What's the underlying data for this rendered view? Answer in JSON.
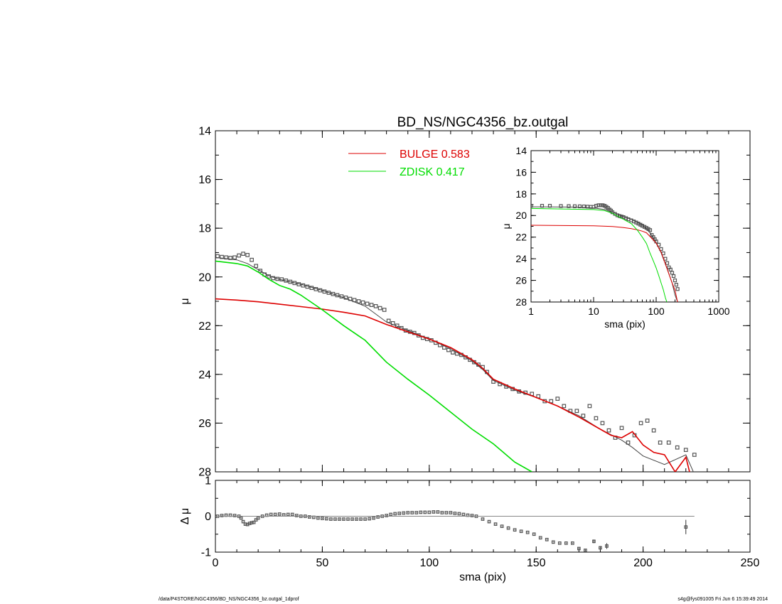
{
  "chart_data": [
    {
      "id": "main",
      "type": "scatter",
      "title": "BD_NS/NGC4356_bz.outgal",
      "xlabel": "",
      "ylabel": "μ",
      "xlim": [
        0,
        250
      ],
      "ylim": [
        28,
        14
      ],
      "xticks": [
        0,
        50,
        100,
        150,
        200,
        250
      ],
      "yticks": [
        14,
        16,
        18,
        20,
        22,
        24,
        26,
        28
      ],
      "legend": [
        {
          "label": "BULGE",
          "value": "0.583",
          "color": "#dd0000"
        },
        {
          "label": "ZDISK",
          "value": "0.417",
          "color": "#00dd00"
        }
      ],
      "series": [
        {
          "name": "data",
          "style": "points",
          "color": "#555555",
          "x": [
            1,
            3,
            5,
            7,
            9,
            11,
            13,
            15,
            17,
            19,
            21,
            23,
            25,
            27,
            29,
            31,
            33,
            35,
            37,
            39,
            41,
            43,
            45,
            47,
            49,
            51,
            53,
            55,
            57,
            59,
            61,
            63,
            65,
            67,
            69,
            71,
            73,
            75,
            77,
            79,
            81,
            83,
            85,
            87,
            89,
            91,
            93,
            95,
            97,
            99,
            101,
            103,
            105,
            107,
            109,
            111,
            113,
            115,
            117,
            119,
            121,
            123,
            125,
            127,
            130,
            133,
            136,
            139,
            142,
            145,
            148,
            151,
            154,
            157,
            160,
            163,
            166,
            169,
            172,
            175,
            178,
            181,
            184,
            187,
            190,
            193,
            196,
            199,
            202,
            205,
            208,
            212,
            216,
            220,
            224
          ],
          "y": [
            19.15,
            19.18,
            19.2,
            19.22,
            19.2,
            19.12,
            19.05,
            19.1,
            19.3,
            19.55,
            19.75,
            19.9,
            19.98,
            20.05,
            20.08,
            20.1,
            20.15,
            20.2,
            20.25,
            20.3,
            20.35,
            20.4,
            20.45,
            20.5,
            20.55,
            20.6,
            20.65,
            20.7,
            20.75,
            20.8,
            20.85,
            20.9,
            20.95,
            21.0,
            21.05,
            21.1,
            21.15,
            21.2,
            21.28,
            21.35,
            21.8,
            21.9,
            22.0,
            22.1,
            22.2,
            22.25,
            22.3,
            22.4,
            22.5,
            22.55,
            22.6,
            22.7,
            22.8,
            22.9,
            23.0,
            23.1,
            23.15,
            23.2,
            23.3,
            23.4,
            23.5,
            23.6,
            23.7,
            23.9,
            24.3,
            24.4,
            24.5,
            24.6,
            24.7,
            24.75,
            24.8,
            24.9,
            25.1,
            25.1,
            25.0,
            25.3,
            25.5,
            25.5,
            25.7,
            25.3,
            25.8,
            26.0,
            26.3,
            26.6,
            26.2,
            26.8,
            26.5,
            26.0,
            25.9,
            26.3,
            26.8,
            26.8,
            27.0,
            27.1,
            27.3
          ]
        },
        {
          "name": "model",
          "style": "line",
          "color": "#444444",
          "x": [
            0,
            5,
            10,
            15,
            20,
            25,
            30,
            35,
            40,
            50,
            60,
            70,
            80,
            90,
            100,
            110,
            120,
            125,
            130,
            140,
            150,
            160,
            170,
            180,
            190,
            195,
            200,
            210,
            220,
            224
          ],
          "y": [
            19.2,
            19.25,
            19.3,
            19.45,
            19.7,
            19.95,
            20.1,
            20.2,
            20.3,
            20.55,
            20.85,
            21.2,
            21.85,
            22.2,
            22.55,
            22.95,
            23.45,
            23.8,
            24.25,
            24.65,
            24.95,
            25.3,
            25.7,
            26.25,
            26.7,
            27.0,
            27.35,
            27.7,
            27.3,
            28.1
          ]
        },
        {
          "name": "BULGE",
          "style": "line",
          "color": "#dd0000",
          "x": [
            0,
            10,
            20,
            30,
            40,
            50,
            60,
            70,
            80,
            90,
            100,
            110,
            120,
            125,
            130,
            140,
            150,
            160,
            170,
            180,
            185,
            190,
            195,
            200,
            205,
            210,
            215,
            220,
            222
          ],
          "y": [
            20.9,
            20.95,
            21.02,
            21.12,
            21.22,
            21.32,
            21.45,
            21.6,
            21.95,
            22.25,
            22.55,
            22.9,
            23.4,
            23.75,
            24.2,
            24.6,
            24.95,
            25.3,
            25.75,
            26.25,
            26.5,
            26.6,
            26.35,
            26.9,
            27.2,
            27.3,
            28.0,
            27.4,
            28.1
          ]
        },
        {
          "name": "ZDISK",
          "style": "line",
          "color": "#00dd00",
          "x": [
            0,
            10,
            15,
            20,
            25,
            30,
            35,
            40,
            50,
            60,
            70,
            80,
            90,
            100,
            110,
            120,
            130,
            140,
            148
          ],
          "y": [
            19.35,
            19.45,
            19.55,
            19.8,
            20.1,
            20.35,
            20.5,
            20.75,
            21.35,
            22.0,
            22.6,
            23.5,
            24.2,
            24.85,
            25.55,
            26.25,
            26.85,
            27.6,
            28.0
          ]
        }
      ]
    },
    {
      "id": "residual",
      "type": "scatter",
      "xlabel": "sma (pix)",
      "ylabel": "Δ μ",
      "xlim": [
        0,
        250
      ],
      "ylim": [
        -1,
        1
      ],
      "xticks": [
        0,
        50,
        100,
        150,
        200,
        250
      ],
      "yticks": [
        -1,
        0,
        1
      ],
      "zero_line": {
        "x": [
          0,
          224
        ],
        "y": 0
      },
      "series": [
        {
          "name": "residuals",
          "style": "points",
          "color": "#555555",
          "x": [
            1,
            3,
            5,
            7,
            9,
            11,
            12,
            13,
            14,
            15,
            16,
            17,
            18,
            19,
            20,
            22,
            24,
            26,
            28,
            30,
            32,
            34,
            36,
            38,
            40,
            42,
            44,
            46,
            48,
            50,
            52,
            54,
            56,
            58,
            60,
            62,
            64,
            66,
            68,
            70,
            72,
            74,
            76,
            78,
            80,
            82,
            84,
            86,
            88,
            90,
            92,
            94,
            96,
            98,
            100,
            102,
            104,
            106,
            108,
            110,
            112,
            114,
            116,
            118,
            120,
            122,
            125,
            128,
            131,
            134,
            137,
            140,
            143,
            146,
            149,
            152,
            155,
            158,
            161,
            164,
            167,
            170,
            173,
            177,
            180,
            183,
            220
          ],
          "y": [
            0.0,
            0.02,
            0.03,
            0.03,
            0.02,
            0.0,
            -0.05,
            -0.15,
            -0.22,
            -0.23,
            -0.2,
            -0.18,
            -0.17,
            -0.1,
            -0.05,
            0.0,
            0.03,
            0.05,
            0.05,
            0.06,
            0.04,
            0.05,
            0.05,
            0.02,
            0.0,
            0.0,
            -0.02,
            -0.03,
            -0.05,
            -0.06,
            -0.07,
            -0.08,
            -0.08,
            -0.08,
            -0.08,
            -0.08,
            -0.08,
            -0.08,
            -0.08,
            -0.08,
            -0.07,
            -0.05,
            -0.02,
            0.0,
            0.02,
            0.05,
            0.07,
            0.08,
            0.09,
            0.1,
            0.1,
            0.1,
            0.11,
            0.11,
            0.11,
            0.12,
            0.12,
            0.1,
            0.1,
            0.1,
            0.08,
            0.07,
            0.05,
            0.03,
            0.02,
            0.0,
            -0.08,
            -0.15,
            -0.22,
            -0.28,
            -0.33,
            -0.38,
            -0.42,
            -0.45,
            -0.5,
            -0.6,
            -0.65,
            -0.72,
            -0.75,
            -0.75,
            -0.75,
            -0.9,
            -0.95,
            -0.7,
            -0.88,
            -0.83,
            -0.3
          ],
          "yerr": [
            0.01,
            0.01,
            0.01,
            0.01,
            0.01,
            0.01,
            0.01,
            0.01,
            0.01,
            0.01,
            0.01,
            0.01,
            0.01,
            0.01,
            0.01,
            0.01,
            0.01,
            0.01,
            0.01,
            0.01,
            0.01,
            0.01,
            0.01,
            0.01,
            0.01,
            0.01,
            0.01,
            0.01,
            0.01,
            0.01,
            0.01,
            0.01,
            0.01,
            0.01,
            0.01,
            0.01,
            0.01,
            0.01,
            0.01,
            0.01,
            0.01,
            0.01,
            0.01,
            0.01,
            0.01,
            0.01,
            0.01,
            0.01,
            0.01,
            0.01,
            0.01,
            0.01,
            0.01,
            0.01,
            0.01,
            0.01,
            0.01,
            0.01,
            0.01,
            0.01,
            0.01,
            0.01,
            0.01,
            0.01,
            0.01,
            0.01,
            0.01,
            0.01,
            0.01,
            0.01,
            0.01,
            0.01,
            0.01,
            0.01,
            0.01,
            0.01,
            0.01,
            0.01,
            0.01,
            0.01,
            0.01,
            0.02,
            0.02,
            0.05,
            0.05,
            0.08,
            0.2
          ]
        }
      ]
    },
    {
      "id": "inset",
      "type": "scatter",
      "xlabel": "sma (pix)",
      "ylabel": "μ",
      "xscale": "log",
      "xlim": [
        1,
        1000
      ],
      "ylim": [
        28,
        14
      ],
      "xticks": [
        1,
        10,
        100,
        1000
      ],
      "yticks": [
        14,
        16,
        18,
        20,
        22,
        24,
        26,
        28
      ],
      "series": [
        {
          "name": "data",
          "style": "points",
          "color": "#555555",
          "x": [
            1,
            1.5,
            2,
            3,
            4,
            5,
            6,
            7,
            8,
            9,
            10,
            11,
            12,
            13,
            14,
            15,
            16,
            17,
            18,
            19,
            20,
            22,
            24,
            26,
            28,
            30,
            33,
            36,
            40,
            44,
            48,
            52,
            56,
            60,
            65,
            70,
            75,
            80,
            85,
            90,
            95,
            100,
            110,
            120,
            130,
            140,
            150,
            160,
            170,
            180,
            190,
            200,
            210,
            220
          ],
          "y": [
            19.1,
            19.1,
            19.1,
            19.12,
            19.13,
            19.14,
            19.15,
            19.16,
            19.18,
            19.2,
            19.2,
            19.1,
            19.05,
            19.05,
            19.05,
            19.1,
            19.2,
            19.3,
            19.45,
            19.55,
            19.7,
            19.85,
            19.98,
            20.05,
            20.1,
            20.15,
            20.25,
            20.35,
            20.45,
            20.55,
            20.65,
            20.75,
            20.85,
            20.95,
            21.05,
            21.15,
            21.25,
            21.35,
            21.8,
            22.0,
            22.2,
            22.4,
            22.7,
            23.1,
            23.5,
            24.0,
            24.4,
            24.8,
            25.0,
            25.3,
            25.6,
            26.0,
            26.4,
            26.8
          ]
        },
        {
          "name": "model",
          "style": "line",
          "color": "#444444",
          "x": [
            1,
            5,
            10,
            15,
            20,
            30,
            40,
            60,
            80,
            100,
            120,
            150,
            180,
            200,
            220
          ],
          "y": [
            19.2,
            19.22,
            19.3,
            19.45,
            19.7,
            20.1,
            20.35,
            20.85,
            21.6,
            22.55,
            23.45,
            24.95,
            26.25,
            27.35,
            28.0
          ]
        },
        {
          "name": "BULGE",
          "style": "line",
          "color": "#dd0000",
          "x": [
            1,
            10,
            20,
            30,
            40,
            50,
            60,
            70,
            80,
            90,
            100,
            120,
            150,
            180,
            200,
            220
          ],
          "y": [
            20.9,
            20.95,
            21.02,
            21.12,
            21.22,
            21.32,
            21.45,
            21.6,
            21.95,
            22.25,
            22.55,
            23.4,
            24.95,
            26.25,
            26.9,
            28.0
          ]
        },
        {
          "name": "ZDISK",
          "style": "line",
          "color": "#00dd00",
          "x": [
            1,
            10,
            15,
            20,
            25,
            30,
            40,
            50,
            60,
            70,
            80,
            90,
            100,
            110,
            120,
            130,
            140,
            148
          ],
          "y": [
            19.35,
            19.45,
            19.55,
            19.8,
            20.1,
            20.35,
            20.75,
            21.35,
            22.0,
            22.6,
            23.5,
            24.2,
            24.85,
            25.55,
            26.25,
            26.85,
            27.6,
            28.0
          ]
        }
      ]
    }
  ],
  "footer": {
    "left": "/data/P4STORE/NGC4356/BD_NS/NGC4356_bz.outgal_1dprof",
    "right": "s4g@fys091005  Fri Jun  6 15:39:49 2014"
  }
}
